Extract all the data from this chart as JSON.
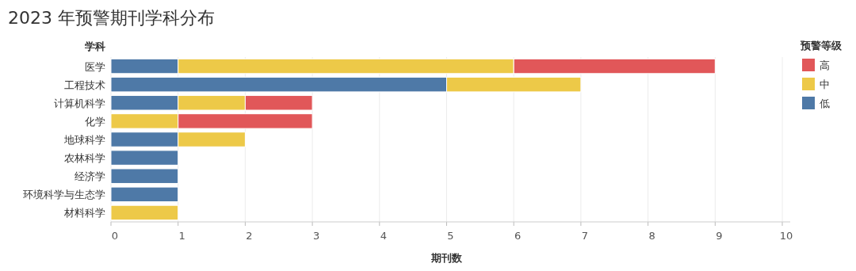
{
  "chart_data": {
    "type": "bar",
    "orientation": "horizontal",
    "stacked": true,
    "title": "2023 年预警期刊学科分布",
    "xlabel": "期刊数",
    "ylabel": "学科",
    "legend_title": "预警等级",
    "legend": "right",
    "grid": "x",
    "categories": [
      "医学",
      "工程技术",
      "计算机科学",
      "化学",
      "地球科学",
      "农林科学",
      "经济学",
      "环境科学与生态学",
      "材料科学"
    ],
    "xlim": [
      0,
      10
    ],
    "xticks": [
      0,
      1,
      2,
      3,
      4,
      5,
      6,
      7,
      8,
      9,
      10
    ],
    "series": [
      {
        "name": "低",
        "color": "#4e79a7",
        "values": [
          1,
          5,
          1,
          null,
          1,
          1,
          1,
          1,
          null
        ]
      },
      {
        "name": "中",
        "color": "#edc948",
        "values": [
          5,
          2,
          1,
          1,
          1,
          null,
          null,
          null,
          1
        ]
      },
      {
        "name": "高",
        "color": "#e15759",
        "values": [
          3,
          null,
          1,
          2,
          null,
          null,
          null,
          null,
          null
        ]
      }
    ]
  }
}
